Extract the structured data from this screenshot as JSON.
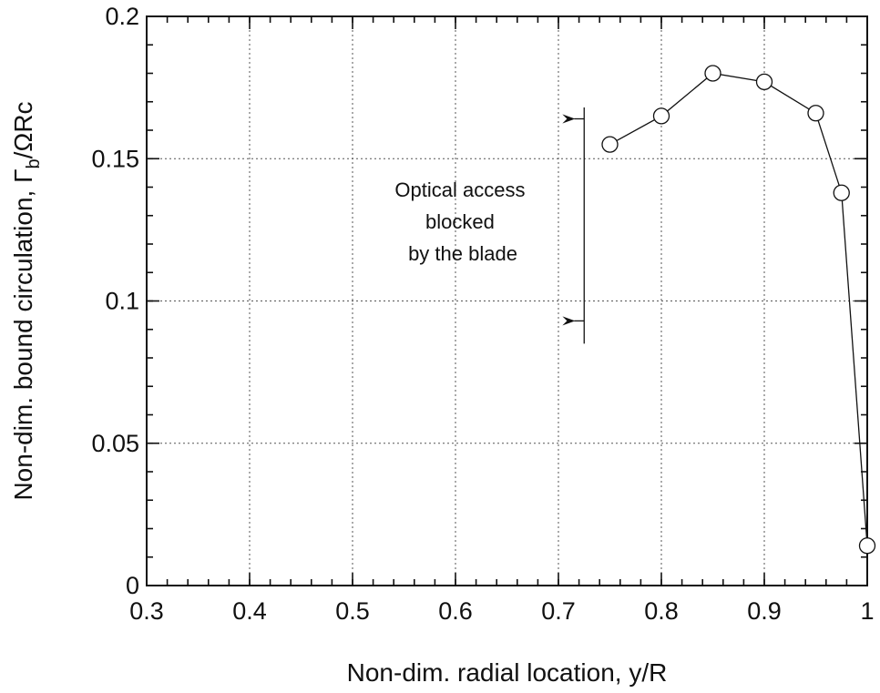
{
  "chart_data": {
    "type": "line",
    "xlabel": "Non-dim. radial location, y/R",
    "ylabel_main": "Non-dim. bound circulation,  Γ",
    "ylabel_sub": "b",
    "ylabel_tail": "/ΩRc",
    "xlim": [
      0.3,
      1.0
    ],
    "ylim": [
      0,
      0.2
    ],
    "xticks": [
      0.3,
      0.4,
      0.5,
      0.6,
      0.7,
      0.8,
      0.9,
      1.0
    ],
    "xtick_labels": [
      "0.3",
      "0.4",
      "0.5",
      "0.6",
      "0.7",
      "0.8",
      "0.9",
      "1"
    ],
    "yticks": [
      0,
      0.05,
      0.1,
      0.15,
      0.2
    ],
    "ytick_labels": [
      "0",
      "0.05",
      "0.1",
      "0.15",
      "0.2"
    ],
    "x_minor_step": 0.02,
    "y_minor_step": 0.01,
    "grid": true,
    "series": [
      {
        "marker": "open-circle",
        "x": [
          0.75,
          0.8,
          0.85,
          0.9,
          0.95,
          0.975,
          1.0
        ],
        "y": [
          0.155,
          0.165,
          0.18,
          0.177,
          0.166,
          0.138,
          0.014
        ]
      }
    ],
    "annotation": {
      "lines": [
        "Optical access",
        "blocked",
        "by the blade"
      ],
      "bracket_x": 0.725,
      "bracket_y_range": [
        0.085,
        0.168
      ],
      "arrow_tip_x": 0.703,
      "arrow_y": [
        0.164,
        0.093
      ]
    }
  }
}
